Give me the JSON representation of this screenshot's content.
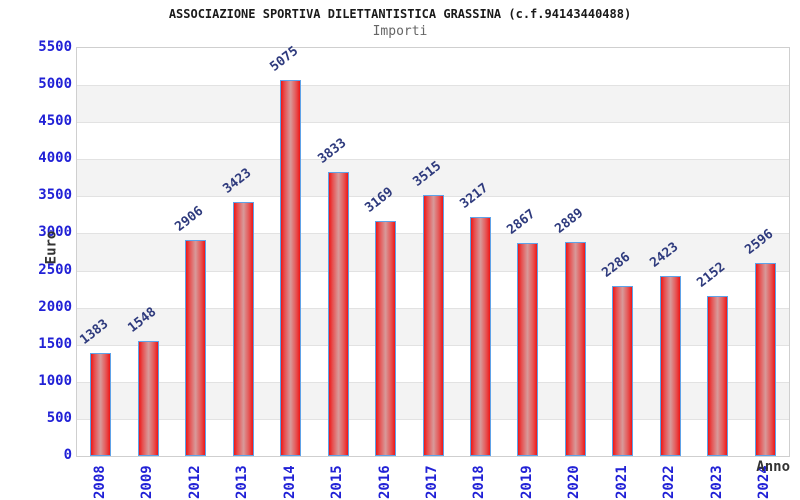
{
  "header": {
    "title": "ASSOCIAZIONE SPORTIVA DILETTANTISTICA GRASSINA (c.f.94143440488)",
    "subtitle": "Importi"
  },
  "chart_data": {
    "type": "bar",
    "title": "ASSOCIAZIONE SPORTIVA DILETTANTISTICA GRASSINA (c.f.94143440488)",
    "subtitle": "Importi",
    "categories": [
      "2008",
      "2009",
      "2012",
      "2013",
      "2014",
      "2015",
      "2016",
      "2017",
      "2018",
      "2019",
      "2020",
      "2021",
      "2022",
      "2023",
      "2024"
    ],
    "values": [
      1383,
      1548,
      2906,
      3423,
      5075,
      3833,
      3169,
      3515,
      3217,
      2867,
      2889,
      2286,
      2423,
      2152,
      2596
    ],
    "xlabel": "Anno",
    "ylabel": "Euro",
    "ylim": [
      0,
      5500
    ],
    "yticks": [
      0,
      500,
      1000,
      1500,
      2000,
      2500,
      3000,
      3500,
      4000,
      4500,
      5000,
      5500
    ],
    "grid": "alternating horizontal bands every 500, gridline at each band boundary",
    "legend": "none",
    "value_labels": "above each bar, rotated",
    "colors": {
      "bar_edge_red": "#ee1717",
      "bar_mid_red": "#e65252",
      "bar_center_highlight": "#d89a9a",
      "bar_border": "#5ea2e8",
      "ytick_label": "#2121d6",
      "xtick_label": "#2121d6",
      "value_label": "#2e3a7d",
      "band_gray": "#f3f3f3",
      "grid_line": "#e2e2e2",
      "plot_border": "#cfcfcf",
      "axis_title": "#333333",
      "title_color": "#1a1a1a",
      "subtitle_color": "#666666"
    }
  }
}
